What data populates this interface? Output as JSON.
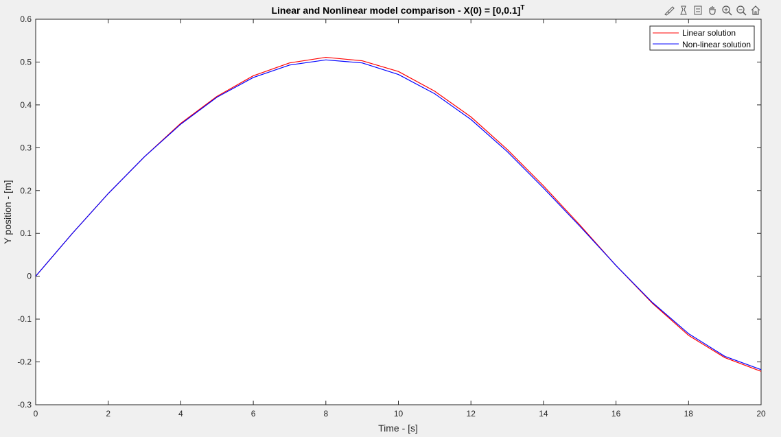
{
  "chart_data": {
    "type": "line",
    "title": "Linear and Nonlinear model comparison - X(0) = [0,0.1]",
    "title_superscript": "T",
    "xlabel": "Time - [s]",
    "ylabel": "Y position - [m]",
    "xlim": [
      0,
      20
    ],
    "ylim": [
      -0.3,
      0.6
    ],
    "xticks": [
      0,
      2,
      4,
      6,
      8,
      10,
      12,
      14,
      16,
      18,
      20
    ],
    "xtick_labels": [
      "0",
      "2",
      "4",
      "6",
      "8",
      "10",
      "12",
      "14",
      "16",
      "18",
      "20"
    ],
    "yticks": [
      -0.3,
      -0.2,
      -0.1,
      0,
      0.1,
      0.2,
      0.3,
      0.4,
      0.5,
      0.6
    ],
    "ytick_labels": [
      "-0.3",
      "-0.2",
      "-0.1",
      "0",
      "0.1",
      "0.2",
      "0.3",
      "0.4",
      "0.5",
      "0.6"
    ],
    "grid": false,
    "legend_position": "top-right",
    "x": [
      0,
      1,
      2,
      3,
      4,
      5,
      6,
      7,
      8,
      9,
      10,
      11,
      12,
      13,
      14,
      15,
      16,
      17,
      18,
      19,
      20
    ],
    "series": [
      {
        "name": "Linear solution",
        "color": "#ff0000",
        "values": [
          0.0,
          0.099,
          0.193,
          0.279,
          0.357,
          0.42,
          0.468,
          0.498,
          0.511,
          0.503,
          0.478,
          0.432,
          0.372,
          0.296,
          0.211,
          0.12,
          0.025,
          -0.063,
          -0.138,
          -0.19,
          -0.222
        ]
      },
      {
        "name": "Non-linear solution",
        "color": "#0000ff",
        "values": [
          0.0,
          0.099,
          0.193,
          0.279,
          0.355,
          0.418,
          0.464,
          0.493,
          0.505,
          0.498,
          0.471,
          0.426,
          0.366,
          0.291,
          0.206,
          0.117,
          0.025,
          -0.061,
          -0.134,
          -0.187,
          -0.218
        ]
      }
    ]
  },
  "toolbar": {
    "icons": [
      "brush-icon",
      "data-tips-icon",
      "legend-icon",
      "pan-icon",
      "zoom-in-icon",
      "zoom-out-icon",
      "home-icon"
    ]
  }
}
